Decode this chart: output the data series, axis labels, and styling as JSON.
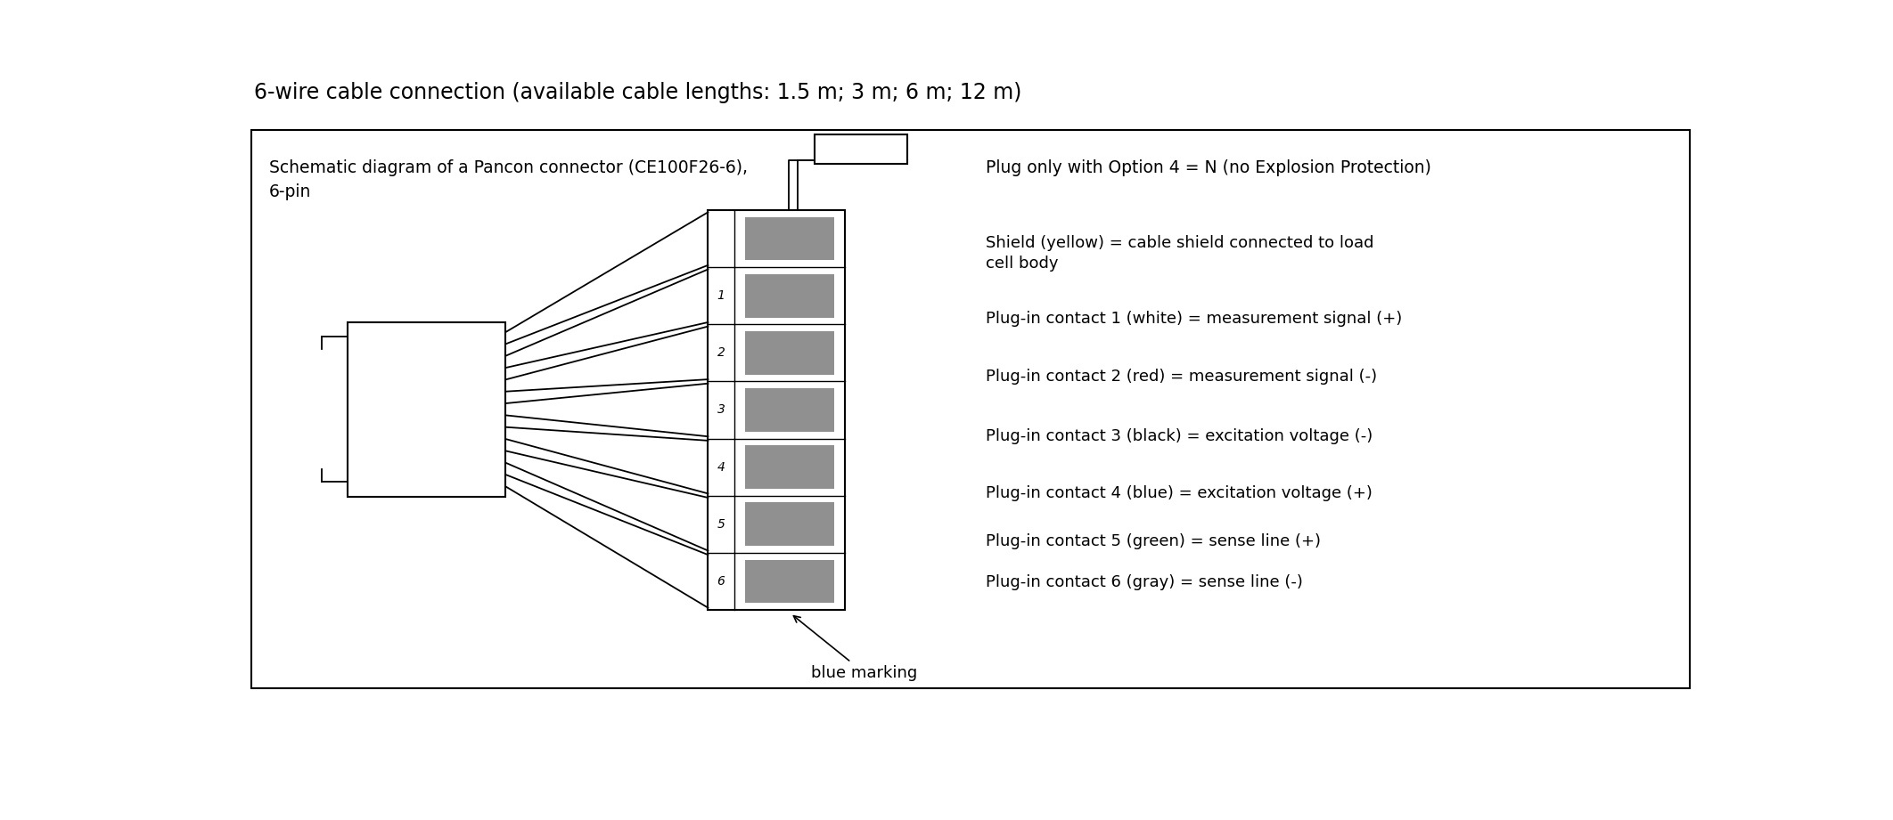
{
  "title": "6-wire cable connection (available cable lengths: 1.5 m; 3 m; 6 m; 12 m)",
  "title_fontsize": 17,
  "background_color": "#ffffff",
  "border_color": "#000000",
  "text_color": "#000000",
  "left_label_line1": "Schematic diagram of a Pancon connector (CE100F26-6),",
  "left_label_line2": "6-pin",
  "right_title": "Plug only with Option 4 = N (no Explosion Protection)",
  "right_labels": [
    "Shield (yellow) = cable shield connected to load\ncell body",
    "Plug-in contact 1 (white) = measurement signal (+)",
    "Plug-in contact 2 (red) = measurement signal (-)",
    "Plug-in contact 3 (black) = excitation voltage (-)",
    "Plug-in contact 4 (blue) = excitation voltage (+)",
    "Plug-in contact 5 (green) = sense line (+)",
    "Plug-in contact 6 (gray) = sense line (-)"
  ],
  "pin_labels": [
    "",
    "1",
    "2",
    "3",
    "4",
    "5",
    "6"
  ],
  "gray_color": "#909090",
  "annotation": "blue marking",
  "font_family": "DejaVu Sans",
  "lw": 1.3
}
